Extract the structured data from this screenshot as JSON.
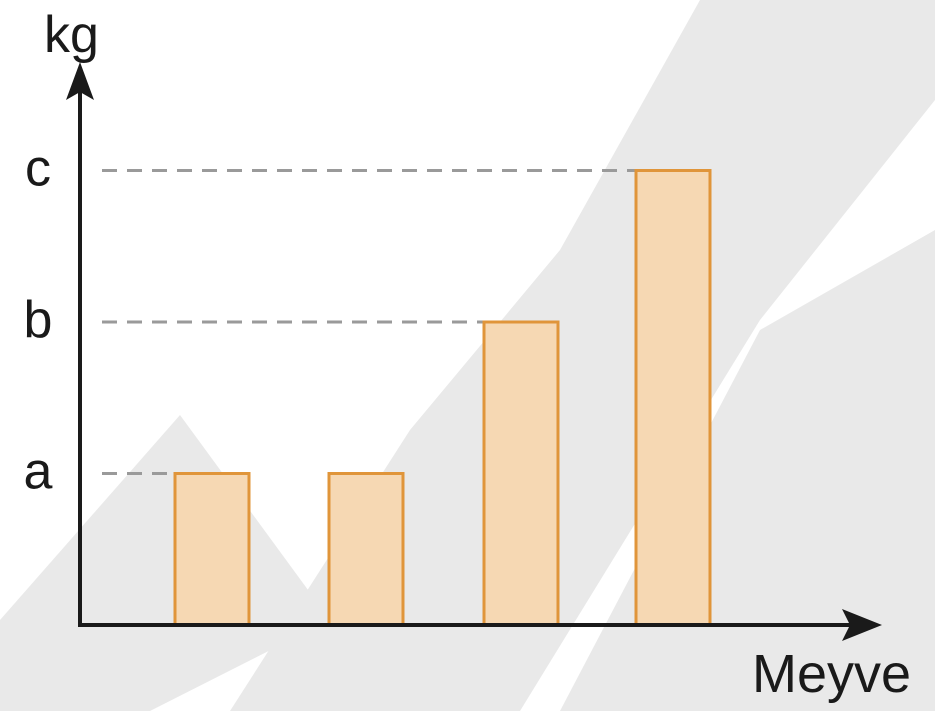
{
  "chart_data": {
    "type": "bar",
    "ylabel": "kg",
    "xlabel": "Meyve",
    "y_tick_labels": [
      "a",
      "b",
      "c"
    ],
    "y_tick_values": [
      1,
      2,
      3
    ],
    "values": [
      1,
      1,
      2,
      3
    ],
    "ylim": [
      0,
      3.4
    ],
    "grid": false,
    "reference_lines": "dashed",
    "colors": {
      "bar_fill": "#f6d8b3",
      "bar_stroke": "#e0953a",
      "axis": "#1a1a1a",
      "dash": "#9a9a9a"
    }
  }
}
